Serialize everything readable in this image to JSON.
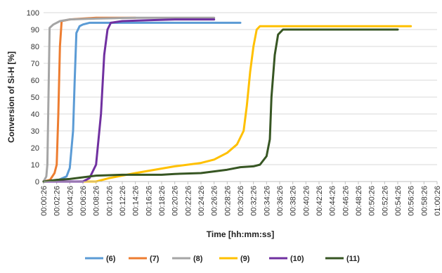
{
  "chart_data": {
    "type": "line",
    "title": "",
    "xlabel": "Time [hh:mm:ss]",
    "ylabel": "Conversion of Si-H [%]",
    "ylim": [
      0,
      100
    ],
    "yticks": [
      0,
      10,
      20,
      30,
      40,
      50,
      60,
      70,
      80,
      90,
      100
    ],
    "xlim": [
      "00:00:26",
      "01:00:26"
    ],
    "xticks": [
      "00:00:26",
      "00:02:26",
      "00:04:26",
      "00:06:26",
      "00:08:26",
      "00:10:26",
      "00:12:26",
      "00:14:26",
      "00:16:26",
      "00:18:26",
      "00:20:26",
      "00:22:26",
      "00:24:26",
      "00:26:26",
      "00:28:26",
      "00:30:26",
      "00:32:26",
      "00:34:26",
      "00:36:26",
      "00:38:26",
      "00:40:26",
      "00:42:26",
      "00:44:26",
      "00:46:26",
      "00:48:26",
      "00:50:26",
      "00:52:26",
      "00:54:26",
      "00:56:26",
      "00:58:26",
      "01:00:26"
    ],
    "grid": "horizontal",
    "legend": "bottom",
    "series": [
      {
        "name": "(6)",
        "color": "#5b9bd5",
        "points": [
          [
            "00:00:26",
            0
          ],
          [
            "00:02:26",
            0.5
          ],
          [
            "00:03:56",
            3
          ],
          [
            "00:04:26",
            8
          ],
          [
            "00:04:56",
            30
          ],
          [
            "00:05:11",
            60
          ],
          [
            "00:05:26",
            88
          ],
          [
            "00:05:56",
            92
          ],
          [
            "00:06:26",
            93
          ],
          [
            "00:07:26",
            94
          ],
          [
            "00:10:26",
            94
          ],
          [
            "00:20:26",
            94
          ],
          [
            "00:30:26",
            94
          ]
        ]
      },
      {
        "name": "(7)",
        "color": "#ed7d31",
        "points": [
          [
            "00:00:26",
            0
          ],
          [
            "00:01:26",
            1
          ],
          [
            "00:02:06",
            5
          ],
          [
            "00:02:26",
            10
          ],
          [
            "00:02:41",
            40
          ],
          [
            "00:02:56",
            80
          ],
          [
            "00:03:11",
            95
          ],
          [
            "00:04:26",
            96
          ],
          [
            "00:06:26",
            96.5
          ],
          [
            "00:08:26",
            97
          ],
          [
            "00:10:26",
            97
          ],
          [
            "00:14:26",
            97
          ]
        ]
      },
      {
        "name": "(8)",
        "color": "#a5a5a5",
        "points": [
          [
            "00:00:26",
            0
          ],
          [
            "00:00:51",
            3
          ],
          [
            "00:01:01",
            10
          ],
          [
            "00:01:11",
            50
          ],
          [
            "00:01:21",
            91
          ],
          [
            "00:01:56",
            93
          ],
          [
            "00:02:56",
            95
          ],
          [
            "00:04:26",
            96
          ],
          [
            "00:08:26",
            96.5
          ],
          [
            "00:14:26",
            97
          ],
          [
            "00:20:26",
            97
          ],
          [
            "00:26:26",
            97
          ]
        ]
      },
      {
        "name": "(9)",
        "color": "#ffc000",
        "points": [
          [
            "00:00:26",
            0
          ],
          [
            "00:08:26",
            0
          ],
          [
            "00:10:26",
            2
          ],
          [
            "00:14:26",
            5
          ],
          [
            "00:20:26",
            9
          ],
          [
            "00:24:26",
            11
          ],
          [
            "00:26:26",
            13
          ],
          [
            "00:28:26",
            17
          ],
          [
            "00:29:56",
            22
          ],
          [
            "00:30:56",
            30
          ],
          [
            "00:31:26",
            45
          ],
          [
            "00:31:56",
            65
          ],
          [
            "00:32:26",
            80
          ],
          [
            "00:32:56",
            90
          ],
          [
            "00:33:26",
            92
          ],
          [
            "00:36:26",
            92
          ],
          [
            "00:44:26",
            92
          ],
          [
            "00:56:26",
            92
          ]
        ]
      },
      {
        "name": "(10)",
        "color": "#7030a0",
        "points": [
          [
            "00:00:26",
            0
          ],
          [
            "00:06:26",
            0
          ],
          [
            "00:07:26",
            2
          ],
          [
            "00:08:26",
            10
          ],
          [
            "00:09:11",
            40
          ],
          [
            "00:09:41",
            75
          ],
          [
            "00:10:11",
            90
          ],
          [
            "00:10:41",
            94
          ],
          [
            "00:12:26",
            95
          ],
          [
            "00:16:26",
            95.5
          ],
          [
            "00:20:26",
            96
          ],
          [
            "00:26:26",
            96
          ]
        ]
      },
      {
        "name": "(11)",
        "color": "#375623",
        "points": [
          [
            "00:00:26",
            0
          ],
          [
            "00:02:26",
            1
          ],
          [
            "00:04:26",
            1.5
          ],
          [
            "00:06:26",
            2.5
          ],
          [
            "00:08:26",
            3.5
          ],
          [
            "00:12:26",
            4
          ],
          [
            "00:18:26",
            4
          ],
          [
            "00:20:26",
            4.5
          ],
          [
            "00:24:26",
            5
          ],
          [
            "00:26:26",
            6
          ],
          [
            "00:28:26",
            7
          ],
          [
            "00:30:26",
            8.5
          ],
          [
            "00:32:26",
            9
          ],
          [
            "00:33:26",
            10
          ],
          [
            "00:34:26",
            15
          ],
          [
            "00:34:56",
            25
          ],
          [
            "00:35:11",
            50
          ],
          [
            "00:35:41",
            75
          ],
          [
            "00:36:11",
            87
          ],
          [
            "00:36:56",
            90
          ],
          [
            "00:40:26",
            90
          ],
          [
            "00:48:26",
            90
          ],
          [
            "00:54:26",
            90
          ]
        ]
      }
    ]
  }
}
